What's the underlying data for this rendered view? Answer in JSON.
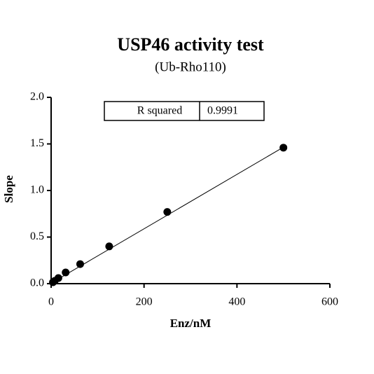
{
  "chart_data": {
    "type": "scatter",
    "title": "USP46 activity test",
    "subtitle": "(Ub-Rho110)",
    "x_label": "Enz/nM",
    "y_label": "Slope",
    "x": [
      500,
      250,
      125,
      62.5,
      31.25,
      15.6,
      7.8,
      3.9
    ],
    "values": [
      1.46,
      0.77,
      0.4,
      0.21,
      0.12,
      0.06,
      0.03,
      0.015
    ],
    "color": "#000000",
    "fit_line": {
      "x": [
        0,
        500
      ],
      "y": [
        0.005,
        1.465
      ]
    },
    "r_squared_label": "R squared",
    "r_squared": 0.9991,
    "xlim": [
      0,
      600
    ],
    "xticks": [
      0,
      200,
      400,
      600
    ],
    "ylim": [
      0,
      2
    ],
    "yticks": [
      {
        "value": 0,
        "label": "0.0"
      },
      {
        "value": 0.5,
        "label": "0.5"
      },
      {
        "value": 1,
        "label": "1.0"
      },
      {
        "value": 1.5,
        "label": "1.5"
      },
      {
        "value": 2,
        "label": "2.0"
      }
    ]
  }
}
